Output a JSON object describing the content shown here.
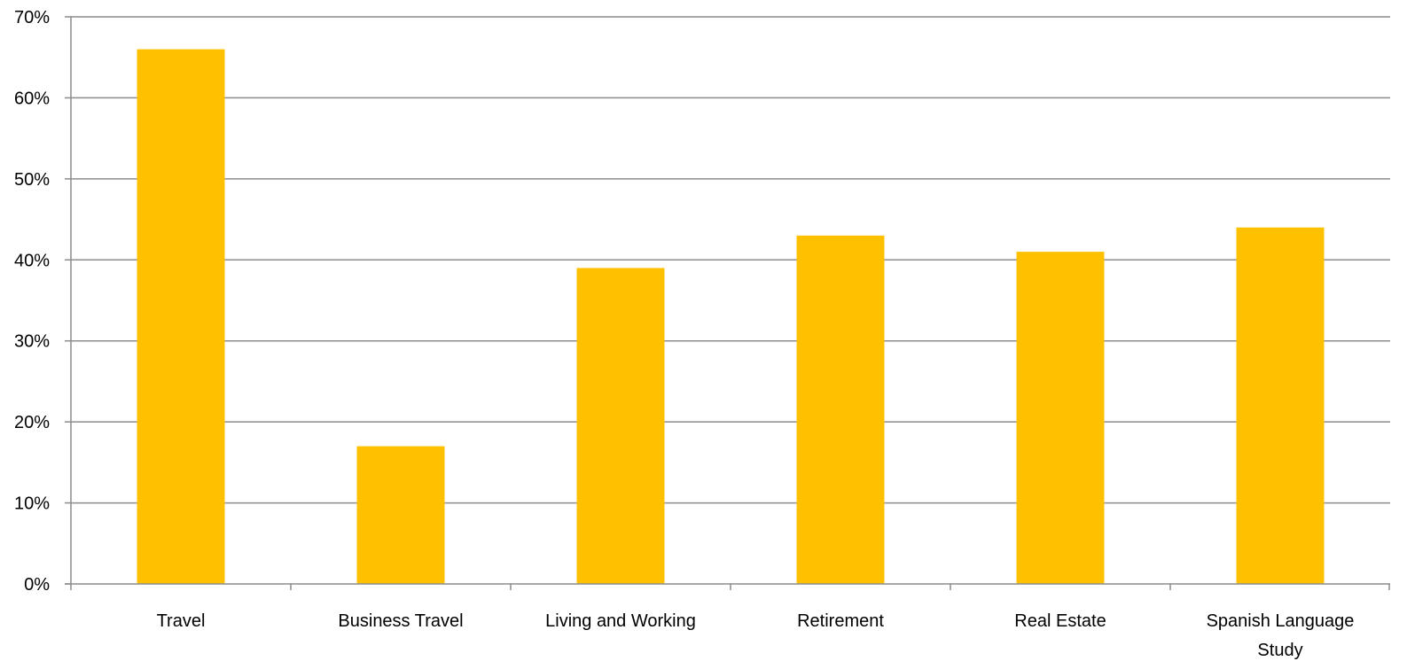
{
  "chart_data": {
    "type": "bar",
    "categories": [
      "Travel",
      "Business Travel",
      "Living and Working",
      "Retirement",
      "Real Estate",
      "Spanish Language Study"
    ],
    "values": [
      66,
      17,
      39,
      43,
      41,
      44
    ],
    "ylim": [
      0,
      70
    ],
    "yticks": [
      0,
      10,
      20,
      30,
      40,
      50,
      60,
      70
    ],
    "ytick_labels": [
      "0%",
      "10%",
      "20%",
      "30%",
      "40%",
      "50%",
      "60%",
      "70%"
    ],
    "grid": true,
    "legend": "none",
    "bar_color": "#FFC000",
    "grid_color": "#8C8C8C"
  }
}
